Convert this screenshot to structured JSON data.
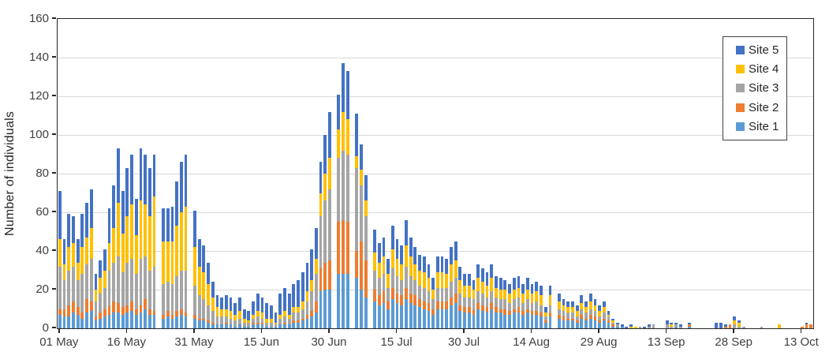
{
  "y_axis_title": "Number of individuals",
  "y_tick_labels": [
    "0",
    "20",
    "40",
    "60",
    "80",
    "100",
    "120",
    "140",
    "160"
  ],
  "legend_items": [
    {
      "label": "Site 5",
      "color": "#4472C4"
    },
    {
      "label": "Site 4",
      "color": "#FFC000"
    },
    {
      "label": "Site 3",
      "color": "#A5A5A5"
    },
    {
      "label": "Site 2",
      "color": "#ED7D31"
    },
    {
      "label": "Site 1",
      "color": "#5B9BD5"
    }
  ],
  "chart_data": {
    "type": "bar",
    "stacked": true,
    "title": "",
    "xlabel": "",
    "ylabel": "Number of individuals",
    "ylim": [
      0,
      160
    ],
    "ytick_step": 20,
    "grid": true,
    "legend_position": "top-right",
    "n_days": 168,
    "x_axis_note": "daily bars from 01 May to mid Oct",
    "xticks": [
      {
        "index": 0,
        "label": "01 May"
      },
      {
        "index": 15,
        "label": "16 May"
      },
      {
        "index": 30,
        "label": "31 May"
      },
      {
        "index": 45,
        "label": "15 Jun"
      },
      {
        "index": 60,
        "label": "30 Jun"
      },
      {
        "index": 75,
        "label": "15 Jul"
      },
      {
        "index": 90,
        "label": "30 Jul"
      },
      {
        "index": 105,
        "label": "14 Aug"
      },
      {
        "index": 120,
        "label": "29 Aug"
      },
      {
        "index": 135,
        "label": "13 Sep"
      },
      {
        "index": 150,
        "label": "28 Sep"
      },
      {
        "index": 165,
        "label": "13 Oct"
      }
    ],
    "series": [
      {
        "name": "Site 1",
        "color": "#5B9BD5",
        "values": [
          7,
          6,
          6,
          8,
          7,
          5,
          8,
          9,
          4,
          5,
          6,
          7,
          8,
          8,
          7,
          8,
          9,
          7,
          8,
          10,
          7,
          7,
          0,
          5,
          6,
          5,
          6,
          7,
          6,
          0,
          5,
          4,
          4,
          3,
          2,
          2,
          2,
          2,
          2,
          1,
          2,
          1,
          1,
          2,
          2,
          2,
          1,
          1,
          1,
          2,
          2,
          2,
          3,
          3,
          4,
          5,
          6,
          8,
          19,
          20,
          20,
          0,
          28,
          28,
          28,
          0,
          26,
          20,
          16,
          0,
          14,
          12,
          13,
          10,
          15,
          13,
          12,
          15,
          13,
          12,
          11,
          10,
          9,
          7,
          10,
          10,
          10,
          12,
          13,
          9,
          8,
          8,
          7,
          10,
          9,
          8,
          10,
          8,
          8,
          7,
          7,
          8,
          8,
          7,
          8,
          7,
          7,
          6,
          3,
          6,
          0,
          5,
          4,
          4,
          4,
          3,
          5,
          4,
          5,
          4,
          3,
          4,
          3,
          1,
          1,
          1,
          0,
          0,
          0,
          0,
          0,
          0,
          0,
          0,
          0,
          0,
          0,
          1,
          0,
          0,
          1,
          0,
          0,
          0,
          0,
          0,
          0,
          0,
          0,
          0,
          0,
          0,
          0,
          0,
          0,
          0,
          0,
          0,
          0,
          0,
          0,
          0,
          0,
          0,
          0,
          0,
          0,
          0
        ]
      },
      {
        "name": "Site 2",
        "color": "#ED7D31",
        "values": [
          3,
          4,
          6,
          6,
          4,
          3,
          7,
          5,
          2,
          3,
          4,
          5,
          6,
          5,
          4,
          4,
          5,
          3,
          4,
          5,
          3,
          2,
          0,
          2,
          3,
          2,
          3,
          3,
          2,
          0,
          2,
          1,
          1,
          1,
          1,
          0,
          0,
          1,
          0,
          0,
          0,
          0,
          0,
          1,
          1,
          1,
          0,
          0,
          0,
          0,
          1,
          0,
          1,
          1,
          1,
          2,
          3,
          6,
          12,
          14,
          15,
          0,
          27,
          28,
          27,
          0,
          14,
          25,
          19,
          0,
          6,
          5,
          6,
          4,
          6,
          5,
          5,
          6,
          5,
          5,
          4,
          4,
          4,
          3,
          4,
          4,
          4,
          4,
          5,
          3,
          3,
          3,
          3,
          3,
          3,
          3,
          3,
          3,
          2,
          3,
          2,
          2,
          3,
          2,
          2,
          2,
          2,
          2,
          1,
          2,
          0,
          2,
          2,
          1,
          1,
          1,
          2,
          1,
          2,
          2,
          1,
          1,
          1,
          1,
          0,
          0,
          0,
          0,
          0,
          0,
          0,
          0,
          0,
          0,
          0,
          0,
          0,
          0,
          0,
          0,
          1,
          0,
          0,
          0,
          0,
          0,
          0,
          0,
          1,
          2,
          0,
          0,
          0,
          0,
          0,
          0,
          0,
          0,
          0,
          0,
          0,
          0,
          0,
          0,
          0,
          1,
          2,
          2
        ]
      },
      {
        "name": "Site 3",
        "color": "#A5A5A5",
        "values": [
          22,
          15,
          18,
          18,
          14,
          20,
          18,
          22,
          8,
          10,
          11,
          18,
          20,
          24,
          18,
          22,
          22,
          18,
          24,
          22,
          20,
          23,
          0,
          16,
          15,
          16,
          18,
          20,
          22,
          0,
          15,
          12,
          10,
          8,
          6,
          4,
          4,
          3,
          3,
          3,
          3,
          2,
          2,
          2,
          3,
          2,
          2,
          2,
          1,
          3,
          3,
          3,
          4,
          4,
          5,
          7,
          10,
          14,
          27,
          32,
          37,
          0,
          33,
          36,
          35,
          0,
          43,
          29,
          23,
          0,
          10,
          9,
          9,
          7,
          10,
          9,
          8,
          11,
          9,
          8,
          7,
          7,
          6,
          5,
          7,
          7,
          7,
          8,
          8,
          6,
          5,
          5,
          5,
          6,
          6,
          5,
          6,
          5,
          5,
          5,
          4,
          5,
          5,
          4,
          5,
          4,
          5,
          4,
          2,
          4,
          0,
          3,
          3,
          3,
          3,
          2,
          3,
          3,
          3,
          3,
          2,
          3,
          2,
          1,
          1,
          0,
          0,
          0,
          0,
          1,
          0,
          1,
          2,
          0,
          0,
          2,
          1,
          1,
          1,
          0,
          0,
          0,
          0,
          0,
          0,
          0,
          0,
          0,
          0,
          0,
          2,
          1,
          1,
          0,
          0,
          0,
          1,
          0,
          0,
          0,
          0,
          0,
          0,
          0,
          0,
          0,
          0,
          0
        ]
      },
      {
        "name": "Site 4",
        "color": "#FFC000",
        "values": [
          14,
          8,
          12,
          12,
          9,
          14,
          14,
          16,
          6,
          8,
          9,
          14,
          18,
          28,
          20,
          24,
          28,
          20,
          30,
          27,
          28,
          36,
          0,
          22,
          21,
          22,
          26,
          30,
          33,
          0,
          20,
          15,
          14,
          11,
          7,
          5,
          4,
          4,
          4,
          3,
          4,
          2,
          1,
          2,
          3,
          3,
          2,
          2,
          1,
          2,
          3,
          2,
          3,
          3,
          4,
          5,
          6,
          8,
          12,
          14,
          16,
          0,
          15,
          20,
          18,
          0,
          6,
          8,
          8,
          0,
          9,
          8,
          9,
          7,
          10,
          9,
          8,
          11,
          10,
          8,
          8,
          8,
          7,
          5,
          8,
          8,
          7,
          9,
          9,
          7,
          6,
          6,
          5,
          7,
          6,
          6,
          7,
          5,
          5,
          5,
          5,
          5,
          5,
          5,
          5,
          5,
          5,
          5,
          2,
          5,
          0,
          4,
          3,
          3,
          3,
          3,
          3,
          3,
          4,
          3,
          3,
          3,
          1,
          1,
          0,
          0,
          0,
          1,
          1,
          0,
          0,
          0,
          0,
          0,
          0,
          0,
          1,
          0,
          0,
          0,
          0,
          0,
          0,
          0,
          0,
          0,
          0,
          0,
          0,
          0,
          2,
          2,
          0,
          0,
          0,
          0,
          0,
          0,
          0,
          0,
          2,
          0,
          0,
          0,
          0,
          0,
          0,
          0
        ]
      },
      {
        "name": "Site 5",
        "color": "#4472C4",
        "values": [
          25,
          13,
          17,
          14,
          12,
          17,
          18,
          20,
          8,
          9,
          11,
          18,
          22,
          28,
          22,
          25,
          26,
          19,
          27,
          26,
          25,
          22,
          0,
          17,
          17,
          18,
          23,
          26,
          27,
          0,
          19,
          14,
          14,
          11,
          8,
          6,
          6,
          7,
          7,
          6,
          7,
          5,
          5,
          7,
          9,
          8,
          8,
          7,
          5,
          11,
          12,
          11,
          12,
          14,
          15,
          15,
          16,
          16,
          16,
          20,
          24,
          0,
          18,
          25,
          25,
          0,
          22,
          13,
          13,
          0,
          12,
          10,
          10,
          8,
          12,
          10,
          10,
          13,
          10,
          9,
          8,
          8,
          7,
          6,
          8,
          8,
          8,
          9,
          10,
          7,
          6,
          6,
          5,
          7,
          7,
          7,
          7,
          6,
          6,
          5,
          5,
          6,
          6,
          5,
          6,
          5,
          5,
          5,
          3,
          5,
          0,
          4,
          3,
          3,
          3,
          3,
          4,
          3,
          4,
          3,
          3,
          3,
          2,
          1,
          1,
          1,
          1,
          1,
          0,
          0,
          1,
          1,
          0,
          0,
          0,
          2,
          1,
          1,
          1,
          0,
          1,
          0,
          0,
          0,
          0,
          0,
          3,
          3,
          1,
          0,
          2,
          1,
          0,
          0,
          0,
          0,
          0,
          0,
          0,
          0,
          0,
          0,
          0,
          0,
          0,
          0,
          1,
          0
        ]
      }
    ]
  }
}
